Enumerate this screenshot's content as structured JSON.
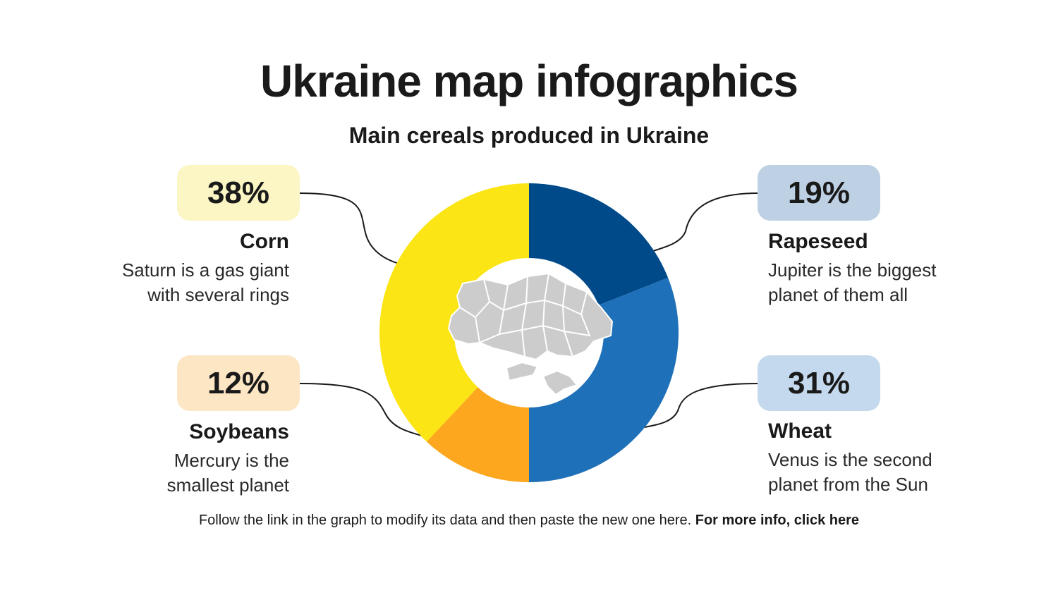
{
  "title": "Ukraine map infographics",
  "subtitle": "Main cereals produced in Ukraine",
  "colors": {
    "corn": "#fbe515",
    "soybeans": "#fca71e",
    "wheat": "#1e70b8",
    "rapeseed": "#004a8a",
    "corn_badge": "#fbf6c4",
    "soybeans_badge": "#fde6c4",
    "wheat_badge": "#c5d9ee",
    "rapeseed_badge": "#bed0e3",
    "map_fill": "#cccccc"
  },
  "chart_data": {
    "type": "pie",
    "donut": true,
    "center_icon": "ukraine-map-icon",
    "slices": [
      {
        "name": "Rapeseed",
        "value": 19
      },
      {
        "name": "Wheat",
        "value": 31
      },
      {
        "name": "Soybeans",
        "value": 12
      },
      {
        "name": "Corn",
        "value": 38
      }
    ]
  },
  "items": {
    "corn": {
      "percent": "38%",
      "name": "Corn",
      "desc1": "Saturn is a gas giant",
      "desc2": "with several rings"
    },
    "soybeans": {
      "percent": "12%",
      "name": "Soybeans",
      "desc1": "Mercury is the",
      "desc2": "smallest planet"
    },
    "rapeseed": {
      "percent": "19%",
      "name": "Rapeseed",
      "desc1": "Jupiter is the biggest",
      "desc2": "planet of them all"
    },
    "wheat": {
      "percent": "31%",
      "name": "Wheat",
      "desc1": "Venus is the second",
      "desc2": "planet from the Sun"
    }
  },
  "footer": {
    "text": "Follow the link in the graph to modify its data and then paste the new one here. ",
    "link": "For more info, click here"
  }
}
